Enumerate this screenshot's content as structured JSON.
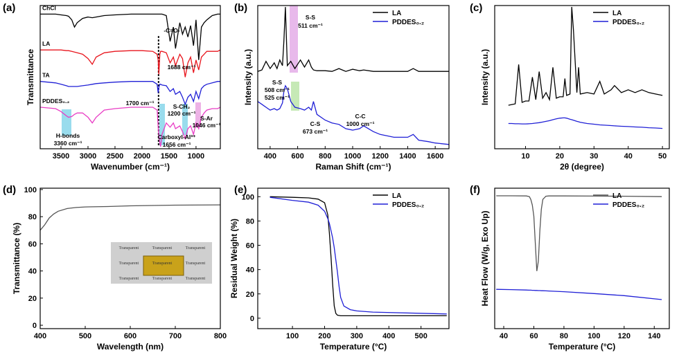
{
  "chart_data": [
    {
      "type": "line",
      "panel": "(a)",
      "x_label": "Wavenumber (cm⁻¹)",
      "y_label": "Transmittance",
      "xlim": [
        3885,
        550
      ],
      "ylim": [
        0,
        100
      ],
      "xticks": [
        3500,
        3000,
        2500,
        2000,
        1500,
        1000
      ],
      "legend": "inline",
      "x": [
        3880,
        3600,
        3500,
        3400,
        3360,
        3300,
        3250,
        3200,
        3100,
        3000,
        2920,
        2850,
        2700,
        2500,
        2200,
        2000,
        1800,
        1720,
        1700,
        1688,
        1670,
        1656,
        1630,
        1550,
        1480,
        1420,
        1380,
        1300,
        1250,
        1200,
        1150,
        1100,
        1046,
        1000,
        950,
        900,
        850,
        800,
        700,
        600,
        550
      ],
      "series": [
        {
          "name": "ChCl",
          "color": "#000000",
          "values": [
            94,
            94,
            93.5,
            93,
            92.5,
            90,
            85,
            88,
            91,
            92,
            91.5,
            92,
            93,
            93.5,
            94,
            94,
            94,
            94,
            94,
            94,
            94,
            94,
            94,
            93,
            75,
            85,
            70,
            88,
            80,
            85,
            78,
            86,
            72,
            90,
            62,
            85,
            88,
            90,
            93,
            94,
            94
          ]
        },
        {
          "name": "LA",
          "color": "#e8141c",
          "values": [
            69,
            69,
            69,
            68.5,
            68.5,
            68,
            67.5,
            67,
            66,
            63,
            59,
            64,
            67,
            68,
            68.5,
            68.5,
            68,
            66,
            62,
            52,
            66,
            68,
            68,
            67,
            60,
            64,
            58,
            66,
            63,
            50,
            60,
            64,
            53,
            62,
            55,
            64,
            66,
            68,
            68,
            68,
            69
          ]
        },
        {
          "name": "TA",
          "color": "#1f1fd6",
          "values": [
            47,
            46,
            45,
            44,
            43.5,
            43.5,
            43.5,
            43.5,
            44,
            44.5,
            45,
            45.5,
            46,
            46.5,
            47,
            47,
            47,
            45,
            39,
            43,
            45,
            45,
            44.5,
            44,
            40,
            42,
            38,
            40,
            36,
            31,
            36,
            38,
            33,
            40,
            35,
            42,
            44,
            45,
            46,
            47,
            47
          ]
        },
        {
          "name": "PDDES₀.₂",
          "color": "#e83cc4",
          "values": [
            29,
            28,
            26,
            23,
            22,
            22.5,
            24,
            25,
            25,
            22,
            18,
            22,
            27,
            28,
            29,
            29,
            29,
            27,
            15,
            10,
            4,
            1.5,
            10,
            18,
            15,
            18,
            14,
            16,
            12,
            7,
            14,
            16,
            10,
            18,
            14,
            22,
            25,
            27,
            28,
            28,
            29
          ]
        }
      ],
      "annotations": [
        "-C=O-",
        "1688 cm⁻¹",
        "1700 cm⁻¹",
        "S-CH₂",
        "1200 cm⁻¹",
        "S-Ar",
        "1046 cm⁻¹",
        "H-bonds",
        "3360 cm⁻¹",
        "Carboxyl-Al³⁺",
        "1656 cm⁻¹"
      ]
    },
    {
      "type": "line",
      "panel": "(b)",
      "x_label": "Raman Shift (cm⁻¹)",
      "y_label": "Intensity (a.u.)",
      "xlim": [
        310,
        1700
      ],
      "ylim": [
        0,
        100
      ],
      "xticks": [
        400,
        600,
        800,
        1000,
        1200,
        1400,
        1600
      ],
      "legend": "upper right",
      "x": [
        310,
        340,
        370,
        400,
        430,
        450,
        470,
        490,
        500,
        511,
        525,
        550,
        580,
        620,
        650,
        680,
        700,
        715,
        740,
        800,
        850,
        900,
        950,
        1000,
        1050,
        1080,
        1150,
        1200,
        1300,
        1400,
        1440,
        1480,
        1550,
        1600,
        1700
      ],
      "series": [
        {
          "name": "LA",
          "color": "#000000",
          "values": [
            54,
            55,
            61,
            56,
            60,
            56,
            62,
            58,
            75,
            99,
            58,
            61,
            56,
            62,
            57,
            62,
            57,
            55,
            54.5,
            54.5,
            54,
            56,
            54,
            55.5,
            54.5,
            55,
            54,
            54,
            54,
            54,
            56,
            54,
            54,
            54,
            54
          ]
        },
        {
          "name": "PDDES₀.₂",
          "color": "#1f1fd6",
          "values": [
            33,
            31,
            29,
            27,
            28,
            27,
            28,
            32,
            40,
            44,
            42,
            33,
            29,
            28,
            27,
            29,
            27,
            33,
            24,
            20,
            18,
            17,
            14,
            13,
            14,
            16,
            12,
            10,
            8,
            8,
            10,
            6,
            5,
            4,
            3
          ]
        }
      ],
      "annotations": [
        "S-S",
        "511 cm⁻¹",
        "S-S",
        "508 cm⁻¹",
        "525 cm⁻¹",
        "C-S",
        "673 cm⁻¹",
        "C-C",
        "1000 cm⁻¹"
      ]
    },
    {
      "type": "line",
      "panel": "(c)",
      "x_label": "2θ (degree)",
      "y_label": "Intensity (a.u.)",
      "xlim": [
        1,
        52
      ],
      "ylim": [
        0,
        102
      ],
      "xticks": [
        10,
        20,
        30,
        40,
        50
      ],
      "legend": "upper right",
      "x": [
        5,
        6,
        7,
        8,
        9,
        10,
        11,
        12,
        13,
        14,
        15,
        16,
        17,
        18,
        19,
        20,
        21,
        21.5,
        22,
        23,
        23.5,
        24,
        25,
        25.5,
        26,
        28,
        30,
        31.7,
        33,
        35,
        36,
        38,
        40,
        42,
        44,
        46,
        48,
        50
      ],
      "series": [
        {
          "name": "LA",
          "color": "#000000",
          "values": [
            31,
            31.5,
            32,
            60,
            33,
            34,
            34,
            51,
            35,
            55,
            36,
            40,
            35,
            58,
            36,
            37,
            37,
            50,
            38,
            39,
            101,
            85,
            40,
            58,
            39,
            40,
            39,
            48,
            39,
            42,
            45,
            40,
            42,
            40,
            42,
            40,
            39,
            38
          ]
        },
        {
          "name": "PDDES₀.₂",
          "color": "#1f1fd6",
          "values": [
            18,
            18,
            17.8,
            17.8,
            17.7,
            17.7,
            17.8,
            18,
            18.3,
            18.6,
            19,
            19.5,
            20,
            20.7,
            21.3,
            21.8,
            22,
            22,
            21.8,
            21,
            20.7,
            20.3,
            19.5,
            19.2,
            18.8,
            18,
            17.5,
            17,
            16.8,
            16.5,
            16.3,
            16,
            15.8,
            15.5,
            15.3,
            15,
            14.8,
            14.5
          ]
        }
      ]
    },
    {
      "type": "line",
      "panel": "(d)",
      "x_label": "Wavelength (nm)",
      "y_label": "Transmittance (%)",
      "xlim": [
        400,
        800
      ],
      "ylim": [
        -2.5,
        101
      ],
      "xticks": [
        400,
        500,
        600,
        700,
        800
      ],
      "yticks": [
        0,
        20,
        40,
        60,
        80,
        100
      ],
      "x": [
        400,
        410,
        420,
        430,
        440,
        460,
        480,
        500,
        550,
        600,
        700,
        800
      ],
      "color": "#555555",
      "values": [
        70,
        74,
        79,
        82,
        84,
        86,
        86.8,
        87.2,
        87.5,
        88,
        88.5,
        88.7
      ],
      "inset": [
        "Transparent",
        "Transparent",
        "Transparent",
        "Transparent",
        "Transparent",
        "Transparent",
        "Transparent",
        "Transparent",
        "Transparent"
      ]
    },
    {
      "type": "line",
      "panel": "(e)",
      "x_label": "Temperature (°C)",
      "y_label": "Residual Weight (%)",
      "xlim": [
        -8,
        587
      ],
      "ylim": [
        -8.6,
        107
      ],
      "xticks": [
        100,
        200,
        300,
        400,
        500
      ],
      "yticks": [
        0,
        20,
        40,
        60,
        80,
        100
      ],
      "legend": "upper right",
      "x": [
        30,
        100,
        150,
        180,
        200,
        210,
        215,
        220,
        225,
        230,
        235,
        240,
        245,
        250,
        260,
        280,
        300,
        350,
        580
      ],
      "series": [
        {
          "name": "LA",
          "color": "#000000",
          "values": [
            100,
            99.5,
            99,
            98,
            95,
            85,
            70,
            50,
            28,
            10,
            4,
            2.5,
            2.2,
            2,
            2,
            2,
            2,
            2,
            2
          ]
        },
        {
          "name": "PDDES₀.₂",
          "color": "#1f1fd6",
          "values": [
            99.5,
            97,
            95.5,
            93,
            88,
            82,
            78,
            72,
            66,
            58,
            48,
            38,
            26,
            17,
            10,
            7,
            6,
            5,
            3.5
          ]
        }
      ]
    },
    {
      "type": "line",
      "panel": "(f)",
      "x_label": "Temperature (°C)",
      "y_label": "Heat Flow (W/g, Exo Up)",
      "xlim": [
        34,
        150
      ],
      "ylim": [
        0,
        100
      ],
      "xticks": [
        40,
        60,
        80,
        100,
        120,
        140
      ],
      "legend": "upper right",
      "x": [
        35,
        45,
        55,
        57,
        58,
        59,
        60,
        61,
        62,
        63,
        64,
        65,
        66,
        68,
        70,
        80,
        100,
        120,
        145
      ],
      "series": [
        {
          "name": "LA",
          "color": "#555555",
          "values": [
            94.6,
            94.6,
            94.5,
            94,
            92,
            88,
            80,
            60,
            41,
            48,
            70,
            85,
            92,
            94.3,
            94.5,
            94.5,
            94.4,
            94.3,
            94
          ]
        },
        {
          "name": "PDDES₀.₂",
          "color": "#1f1fd6",
          "values": [
            28,
            27.8,
            27.5,
            27.4,
            27.4,
            27.3,
            27.3,
            27.2,
            27.2,
            27.1,
            27.1,
            27,
            27,
            26.9,
            26.8,
            26.3,
            25,
            23.5,
            20.7
          ]
        }
      ]
    }
  ]
}
